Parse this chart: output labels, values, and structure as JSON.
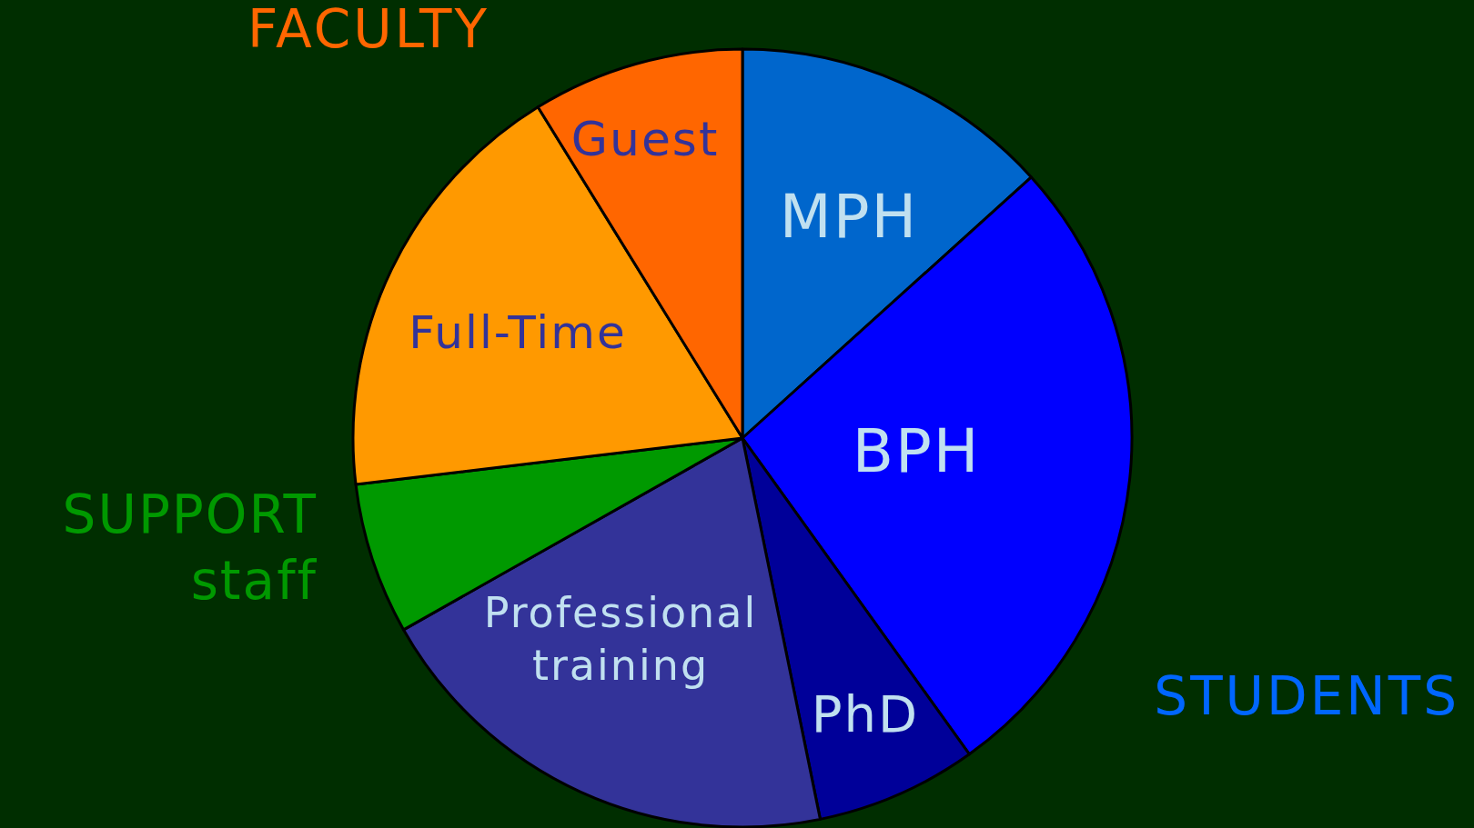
{
  "chart_data": {
    "type": "pie",
    "categories": [
      "MPH",
      "BPH",
      "PhD",
      "Professional training",
      "SUPPORT staff",
      "Full-Time",
      "Guest"
    ],
    "values": [
      13.3,
      26.8,
      6.7,
      20,
      6.3,
      18.1,
      8.8
    ],
    "colors": [
      "#0066cc",
      "#0000ff",
      "#000099",
      "#333399",
      "#009900",
      "#ff9900",
      "#ff6600"
    ],
    "annotations": [
      "FACULTY",
      "STUDENTS"
    ]
  }
}
